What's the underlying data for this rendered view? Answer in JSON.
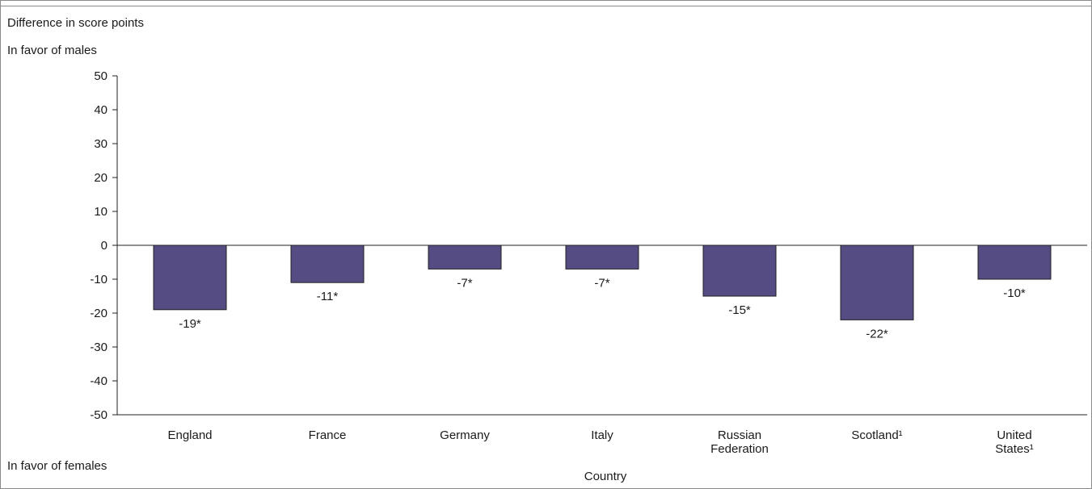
{
  "chart_data": {
    "type": "bar",
    "ylabel": "Difference in score points",
    "top_note": "In favor of males",
    "bottom_note": "In favor of females",
    "xlabel": "Country",
    "ylim": [
      -50,
      50
    ],
    "yticks": [
      50,
      40,
      30,
      20,
      10,
      0,
      -10,
      -20,
      -30,
      -40,
      -50
    ],
    "categories": [
      [
        "England"
      ],
      [
        "France"
      ],
      [
        "Germany"
      ],
      [
        "Italy"
      ],
      [
        "Russian",
        "Federation"
      ],
      [
        "Scotland¹"
      ],
      [
        "United",
        "States¹"
      ]
    ],
    "values": [
      -19,
      -11,
      -7,
      -7,
      -15,
      -22,
      -10
    ],
    "value_labels": [
      "-19*",
      "-11*",
      "-7*",
      "-7*",
      "-15*",
      "-22*",
      "-10*"
    ],
    "bar_color": "#544c82",
    "grid": false
  }
}
